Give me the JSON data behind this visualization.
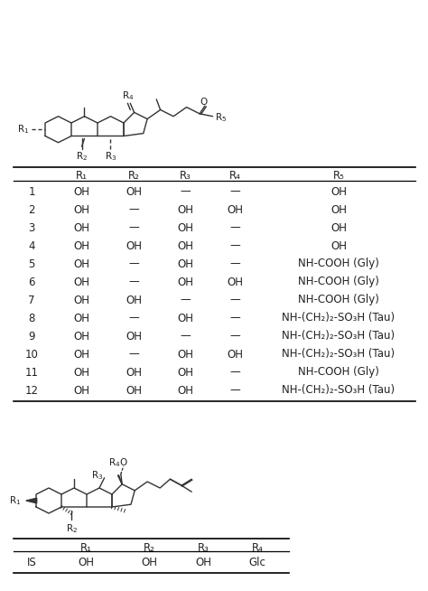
{
  "table1_headers": [
    "",
    "R₁",
    "R₂",
    "R₃",
    "R₄",
    "R₅"
  ],
  "table1_rows": [
    [
      "1",
      "OH",
      "OH",
      "—",
      "—",
      "OH"
    ],
    [
      "2",
      "OH",
      "—",
      "OH",
      "OH",
      "OH"
    ],
    [
      "3",
      "OH",
      "—",
      "OH",
      "—",
      "OH"
    ],
    [
      "4",
      "OH",
      "OH",
      "OH",
      "—",
      "OH"
    ],
    [
      "5",
      "OH",
      "—",
      "OH",
      "—",
      "NH-COOH (Gly)"
    ],
    [
      "6",
      "OH",
      "—",
      "OH",
      "OH",
      "NH-COOH (Gly)"
    ],
    [
      "7",
      "OH",
      "OH",
      "—",
      "—",
      "NH-COOH (Gly)"
    ],
    [
      "8",
      "OH",
      "—",
      "OH",
      "—",
      "NH-(CH₂)₂-SO₃H (Tau)"
    ],
    [
      "9",
      "OH",
      "OH",
      "—",
      "—",
      "NH-(CH₂)₂-SO₃H (Tau)"
    ],
    [
      "10",
      "OH",
      "—",
      "OH",
      "OH",
      "NH-(CH₂)₂-SO₃H (Tau)"
    ],
    [
      "11",
      "OH",
      "OH",
      "OH",
      "—",
      "NH-COOH (Gly)"
    ],
    [
      "12",
      "OH",
      "OH",
      "OH",
      "—",
      "NH-(CH₂)₂-SO₃H (Tau)"
    ]
  ],
  "table2_headers": [
    "",
    "R₁",
    "R₂",
    "R₃",
    "R₄"
  ],
  "table2_rows": [
    [
      "IS",
      "OH",
      "OH",
      "OH",
      "Glc"
    ]
  ],
  "bg_color": "#ffffff",
  "text_color": "#222222",
  "line_color": "#000000",
  "struct_color": "#333333",
  "fontsize_table": 8.5,
  "fontsize_header": 8.5,
  "fontsize_label": 7.5
}
